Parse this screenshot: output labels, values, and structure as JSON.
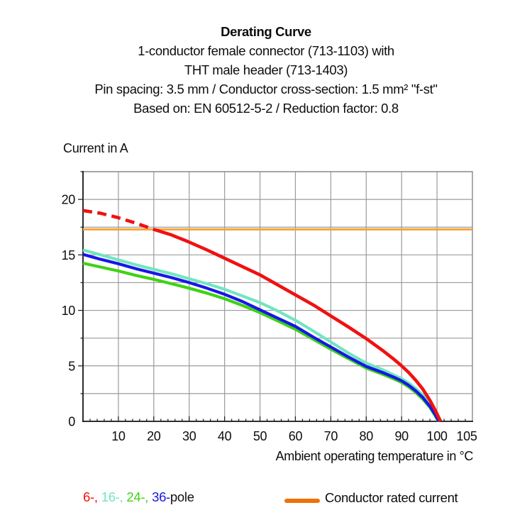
{
  "header": {
    "title": "Derating Curve",
    "subtitle_lines": [
      "1-conductor female connector (713-1103) with",
      "THT male header (713-1403)",
      "Pin spacing: 3.5 mm / Conductor cross-section: 1.5 mm² \"f-st\"",
      "Based on: EN 60512-5-2 / Reduction factor: 0.8"
    ]
  },
  "chart_data": {
    "type": "line",
    "title": "Derating Curve",
    "xlabel": "Ambient operating temperature in °C",
    "ylabel": "Current in A",
    "xlim": [
      0,
      110
    ],
    "ylim": [
      0,
      22.5
    ],
    "grid": true,
    "legend_position": "bottom",
    "x_major_ticks": [
      10,
      20,
      30,
      40,
      50,
      60,
      70,
      80,
      90,
      100,
      105
    ],
    "x_minor_step": 2,
    "x_gridlines": [
      10,
      20,
      30,
      40,
      50,
      60,
      70,
      80,
      90,
      100
    ],
    "y_major_ticks": [
      0,
      5,
      10,
      15,
      20
    ],
    "y_minor_step": 2.5,
    "colors": {
      "grid": "#9b9b9b",
      "border": "#8a8a8a",
      "axis": "#1a1a1a",
      "text": "#0d0d0d"
    },
    "series": [
      {
        "name": "Conductor rated current",
        "color": "#F5A43C",
        "width": 3,
        "dash": false,
        "points": [
          [
            0,
            17.3
          ],
          [
            110,
            17.3
          ]
        ]
      },
      {
        "name": "16-pole",
        "color": "#72E5C1",
        "width": 4.2,
        "dash": false,
        "points": [
          [
            0,
            15.45
          ],
          [
            5,
            15.0
          ],
          [
            10,
            14.55
          ],
          [
            15,
            14.1
          ],
          [
            20,
            13.7
          ],
          [
            25,
            13.3
          ],
          [
            30,
            12.85
          ],
          [
            35,
            12.4
          ],
          [
            40,
            11.9
          ],
          [
            45,
            11.3
          ],
          [
            50,
            10.7
          ],
          [
            55,
            9.95
          ],
          [
            60,
            9.1
          ],
          [
            65,
            8.15
          ],
          [
            70,
            7.15
          ],
          [
            75,
            6.15
          ],
          [
            80,
            5.25
          ],
          [
            85,
            4.6
          ],
          [
            88,
            4.15
          ],
          [
            90,
            3.85
          ],
          [
            92,
            3.45
          ],
          [
            94,
            2.95
          ],
          [
            96,
            2.35
          ],
          [
            98,
            1.55
          ],
          [
            99.5,
            0.8
          ],
          [
            100.7,
            0
          ]
        ]
      },
      {
        "name": "24-pole",
        "color": "#3FD214",
        "width": 4.2,
        "dash": false,
        "points": [
          [
            0,
            14.25
          ],
          [
            5,
            13.9
          ],
          [
            10,
            13.55
          ],
          [
            15,
            13.15
          ],
          [
            20,
            12.8
          ],
          [
            25,
            12.4
          ],
          [
            30,
            12.0
          ],
          [
            35,
            11.55
          ],
          [
            40,
            11.05
          ],
          [
            45,
            10.45
          ],
          [
            50,
            9.8
          ],
          [
            55,
            9.05
          ],
          [
            60,
            8.3
          ],
          [
            65,
            7.4
          ],
          [
            70,
            6.5
          ],
          [
            75,
            5.65
          ],
          [
            80,
            4.8
          ],
          [
            85,
            4.2
          ],
          [
            88,
            3.8
          ],
          [
            90,
            3.5
          ],
          [
            92,
            3.1
          ],
          [
            94,
            2.6
          ],
          [
            96,
            2.0
          ],
          [
            98,
            1.25
          ],
          [
            99.5,
            0.5
          ],
          [
            100.4,
            0
          ]
        ]
      },
      {
        "name": "36-pole",
        "color": "#1717E6",
        "width": 4.2,
        "dash": false,
        "points": [
          [
            0,
            15.05
          ],
          [
            5,
            14.6
          ],
          [
            10,
            14.2
          ],
          [
            15,
            13.75
          ],
          [
            20,
            13.35
          ],
          [
            25,
            12.95
          ],
          [
            30,
            12.5
          ],
          [
            35,
            12.0
          ],
          [
            40,
            11.45
          ],
          [
            45,
            10.8
          ],
          [
            50,
            10.05
          ],
          [
            55,
            9.3
          ],
          [
            60,
            8.55
          ],
          [
            65,
            7.6
          ],
          [
            70,
            6.7
          ],
          [
            75,
            5.8
          ],
          [
            80,
            4.95
          ],
          [
            85,
            4.35
          ],
          [
            88,
            3.95
          ],
          [
            90,
            3.65
          ],
          [
            92,
            3.25
          ],
          [
            94,
            2.75
          ],
          [
            96,
            2.15
          ],
          [
            98,
            1.35
          ],
          [
            99.5,
            0.6
          ],
          [
            100.5,
            0
          ]
        ]
      },
      {
        "name": "6-pole dashed segment",
        "color": "#F01111",
        "width": 4.6,
        "dash": true,
        "points": [
          [
            0,
            19.0
          ],
          [
            5,
            18.75
          ],
          [
            10,
            18.35
          ],
          [
            15,
            17.85
          ],
          [
            20,
            17.3
          ],
          [
            21,
            17.2
          ]
        ]
      },
      {
        "name": "6-pole",
        "color": "#F01111",
        "width": 4.6,
        "dash": false,
        "points": [
          [
            21,
            17.2
          ],
          [
            25,
            16.8
          ],
          [
            30,
            16.15
          ],
          [
            35,
            15.45
          ],
          [
            40,
            14.7
          ],
          [
            45,
            13.95
          ],
          [
            50,
            13.2
          ],
          [
            55,
            12.3
          ],
          [
            60,
            11.4
          ],
          [
            65,
            10.5
          ],
          [
            70,
            9.5
          ],
          [
            75,
            8.5
          ],
          [
            80,
            7.45
          ],
          [
            85,
            6.3
          ],
          [
            88,
            5.55
          ],
          [
            90,
            5.0
          ],
          [
            92,
            4.4
          ],
          [
            94,
            3.7
          ],
          [
            96,
            2.9
          ],
          [
            98,
            1.9
          ],
          [
            99.5,
            1.0
          ],
          [
            101,
            0
          ]
        ]
      }
    ]
  },
  "legend": {
    "pole_items": [
      {
        "label": "6-,",
        "color": "#F01111"
      },
      {
        "label": "16-,",
        "color": "#72E5C1"
      },
      {
        "label": "24-,",
        "color": "#3FD214"
      },
      {
        "label": "36-",
        "color": "#1717E6"
      },
      {
        "label": "pole",
        "color": "#111111"
      }
    ],
    "rated_label": "Conductor rated current",
    "rated_color": "#EE7203"
  }
}
